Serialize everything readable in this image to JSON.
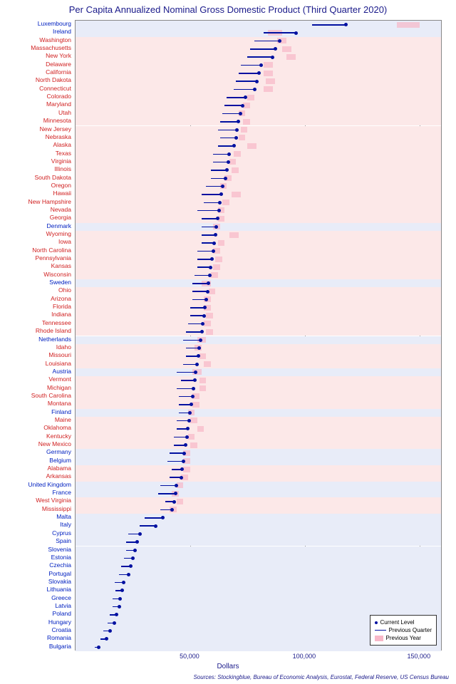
{
  "title": "Per Capita Annualized Nominal Gross Domestic Product (Third Quarter 2020)",
  "xaxis": {
    "title": "Dollars",
    "min": 0,
    "max": 160000,
    "ticks": [
      50000,
      100000,
      150000
    ],
    "tick_labels": [
      "50,000",
      "100,000",
      "150,000"
    ]
  },
  "sources": "Sources: Stockingblue, Bureau of Economic Analysis, Eurostat, Federal Reserve, US Census Bureau",
  "legend": {
    "current": "Current Level",
    "prev_q": "Previous Quarter",
    "prev_y": "Previous Year"
  },
  "colors": {
    "eu_bg": "#e8ecf8",
    "us_bg": "#fce8e8",
    "eu_text": "#0020c0",
    "us_text": "#d02020",
    "marker": "#0010a0",
    "prev_year": "#f8b8c8"
  },
  "rows": [
    {
      "name": "Luxembourg",
      "group": "eu",
      "current": 118000,
      "prev_q": 103000,
      "prev_y_lo": 140000,
      "prev_y_hi": 150000
    },
    {
      "name": "Ireland",
      "group": "eu",
      "current": 96000,
      "prev_q": 82000,
      "prev_y_lo": 84000,
      "prev_y_hi": 90000
    },
    {
      "name": "Washington",
      "group": "us",
      "current": 89000,
      "prev_q": 78000,
      "prev_y_lo": 88000,
      "prev_y_hi": 92000
    },
    {
      "name": "Massachusetts",
      "group": "us",
      "current": 87000,
      "prev_q": 76000,
      "prev_y_lo": 90000,
      "prev_y_hi": 94000
    },
    {
      "name": "New York",
      "group": "us",
      "current": 86000,
      "prev_q": 75000,
      "prev_y_lo": 92000,
      "prev_y_hi": 96000
    },
    {
      "name": "Delaware",
      "group": "us",
      "current": 81000,
      "prev_q": 72000,
      "prev_y_lo": 82000,
      "prev_y_hi": 86000
    },
    {
      "name": "California",
      "group": "us",
      "current": 80000,
      "prev_q": 71000,
      "prev_y_lo": 82000,
      "prev_y_hi": 86000
    },
    {
      "name": "North Dakota",
      "group": "us",
      "current": 79000,
      "prev_q": 70000,
      "prev_y_lo": 83000,
      "prev_y_hi": 87000
    },
    {
      "name": "Connecticut",
      "group": "us",
      "current": 78000,
      "prev_q": 69000,
      "prev_y_lo": 82000,
      "prev_y_hi": 86000
    },
    {
      "name": "Colorado",
      "group": "us",
      "current": 74000,
      "prev_q": 66000,
      "prev_y_lo": 75000,
      "prev_y_hi": 78000
    },
    {
      "name": "Maryland",
      "group": "us",
      "current": 73000,
      "prev_q": 65000,
      "prev_y_lo": 73000,
      "prev_y_hi": 76000
    },
    {
      "name": "Utah",
      "group": "us",
      "current": 72000,
      "prev_q": 64000,
      "prev_y_lo": 71000,
      "prev_y_hi": 74000
    },
    {
      "name": "Minnesota",
      "group": "us",
      "current": 71000,
      "prev_q": 63000,
      "prev_y_lo": 73000,
      "prev_y_hi": 76000
    },
    {
      "name": "New Jersey",
      "group": "us",
      "current": 70500,
      "prev_q": 62000,
      "prev_y_lo": 72000,
      "prev_y_hi": 75000
    },
    {
      "name": "Nebraska",
      "group": "us",
      "current": 70000,
      "prev_q": 63000,
      "prev_y_lo": 71000,
      "prev_y_hi": 74000
    },
    {
      "name": "Alaska",
      "group": "us",
      "current": 69000,
      "prev_q": 62000,
      "prev_y_lo": 75000,
      "prev_y_hi": 79000
    },
    {
      "name": "Texas",
      "group": "us",
      "current": 67000,
      "prev_q": 60000,
      "prev_y_lo": 69000,
      "prev_y_hi": 72000
    },
    {
      "name": "Virginia",
      "group": "us",
      "current": 66500,
      "prev_q": 60000,
      "prev_y_lo": 67000,
      "prev_y_hi": 70000
    },
    {
      "name": "Illinois",
      "group": "us",
      "current": 66000,
      "prev_q": 59000,
      "prev_y_lo": 68000,
      "prev_y_hi": 71000
    },
    {
      "name": "South Dakota",
      "group": "us",
      "current": 65500,
      "prev_q": 59000,
      "prev_y_lo": 65000,
      "prev_y_hi": 68000
    },
    {
      "name": "Oregon",
      "group": "us",
      "current": 64000,
      "prev_q": 57000,
      "prev_y_lo": 63000,
      "prev_y_hi": 66000
    },
    {
      "name": "Hawaii",
      "group": "us",
      "current": 63500,
      "prev_q": 55000,
      "prev_y_lo": 68000,
      "prev_y_hi": 72000
    },
    {
      "name": "New Hampshire",
      "group": "us",
      "current": 63000,
      "prev_q": 56000,
      "prev_y_lo": 64000,
      "prev_y_hi": 67000
    },
    {
      "name": "Nevada",
      "group": "us",
      "current": 62500,
      "prev_q": 53000,
      "prev_y_lo": 62000,
      "prev_y_hi": 65000
    },
    {
      "name": "Georgia",
      "group": "us",
      "current": 62000,
      "prev_q": 55000,
      "prev_y_lo": 62000,
      "prev_y_hi": 65000
    },
    {
      "name": "Denmark",
      "group": "eu",
      "current": 61500,
      "prev_q": 55000,
      "prev_y_lo": 60000,
      "prev_y_hi": 63000
    },
    {
      "name": "Wyoming",
      "group": "us",
      "current": 61000,
      "prev_q": 55000,
      "prev_y_lo": 67000,
      "prev_y_hi": 71000
    },
    {
      "name": "Iowa",
      "group": "us",
      "current": 60500,
      "prev_q": 55000,
      "prev_y_lo": 62000,
      "prev_y_hi": 65000
    },
    {
      "name": "North Carolina",
      "group": "us",
      "current": 60000,
      "prev_q": 53000,
      "prev_y_lo": 60000,
      "prev_y_hi": 63000
    },
    {
      "name": "Pennsylvania",
      "group": "us",
      "current": 59500,
      "prev_q": 53000,
      "prev_y_lo": 61000,
      "prev_y_hi": 64000
    },
    {
      "name": "Kansas",
      "group": "us",
      "current": 59000,
      "prev_q": 53000,
      "prev_y_lo": 60000,
      "prev_y_hi": 63000
    },
    {
      "name": "Wisconsin",
      "group": "us",
      "current": 58500,
      "prev_q": 52000,
      "prev_y_lo": 59000,
      "prev_y_hi": 62000
    },
    {
      "name": "Sweden",
      "group": "eu",
      "current": 58000,
      "prev_q": 51000,
      "prev_y_lo": 55000,
      "prev_y_hi": 59000
    },
    {
      "name": "Ohio",
      "group": "us",
      "current": 57500,
      "prev_q": 51000,
      "prev_y_lo": 58000,
      "prev_y_hi": 61000
    },
    {
      "name": "Arizona",
      "group": "us",
      "current": 57000,
      "prev_q": 51000,
      "prev_y_lo": 56000,
      "prev_y_hi": 59000
    },
    {
      "name": "Florida",
      "group": "us",
      "current": 56500,
      "prev_q": 50000,
      "prev_y_lo": 56000,
      "prev_y_hi": 59000
    },
    {
      "name": "Indiana",
      "group": "us",
      "current": 56000,
      "prev_q": 50000,
      "prev_y_lo": 57000,
      "prev_y_hi": 60000
    },
    {
      "name": "Tennessee",
      "group": "us",
      "current": 55500,
      "prev_q": 49000,
      "prev_y_lo": 56000,
      "prev_y_hi": 59000
    },
    {
      "name": "Rhode Island",
      "group": "us",
      "current": 55000,
      "prev_q": 48000,
      "prev_y_lo": 57000,
      "prev_y_hi": 60000
    },
    {
      "name": "Netherlands",
      "group": "eu",
      "current": 54500,
      "prev_q": 47000,
      "prev_y_lo": 53000,
      "prev_y_hi": 57000
    },
    {
      "name": "Idaho",
      "group": "us",
      "current": 54000,
      "prev_q": 48000,
      "prev_y_lo": 52000,
      "prev_y_hi": 55000
    },
    {
      "name": "Missouri",
      "group": "us",
      "current": 53500,
      "prev_q": 48000,
      "prev_y_lo": 54000,
      "prev_y_hi": 57000
    },
    {
      "name": "Louisiana",
      "group": "us",
      "current": 53000,
      "prev_q": 47000,
      "prev_y_lo": 56000,
      "prev_y_hi": 59000
    },
    {
      "name": "Austria",
      "group": "eu",
      "current": 52500,
      "prev_q": 44000,
      "prev_y_lo": 51000,
      "prev_y_hi": 55000
    },
    {
      "name": "Vermont",
      "group": "us",
      "current": 52000,
      "prev_q": 46000,
      "prev_y_lo": 54000,
      "prev_y_hi": 57000
    },
    {
      "name": "Michigan",
      "group": "us",
      "current": 51500,
      "prev_q": 44000,
      "prev_y_lo": 54000,
      "prev_y_hi": 57000
    },
    {
      "name": "South Carolina",
      "group": "us",
      "current": 51000,
      "prev_q": 45000,
      "prev_y_lo": 51000,
      "prev_y_hi": 54000
    },
    {
      "name": "Montana",
      "group": "us",
      "current": 50500,
      "prev_q": 45000,
      "prev_y_lo": 51000,
      "prev_y_hi": 54000
    },
    {
      "name": "Finland",
      "group": "eu",
      "current": 50000,
      "prev_q": 45000,
      "prev_y_lo": 49000,
      "prev_y_hi": 52000
    },
    {
      "name": "Maine",
      "group": "us",
      "current": 49500,
      "prev_q": 44000,
      "prev_y_lo": 50000,
      "prev_y_hi": 53000
    },
    {
      "name": "Oklahoma",
      "group": "us",
      "current": 49000,
      "prev_q": 44000,
      "prev_y_lo": 53000,
      "prev_y_hi": 56000
    },
    {
      "name": "Kentucky",
      "group": "us",
      "current": 48500,
      "prev_q": 43000,
      "prev_y_lo": 49000,
      "prev_y_hi": 52000
    },
    {
      "name": "New Mexico",
      "group": "us",
      "current": 48000,
      "prev_q": 43000,
      "prev_y_lo": 50000,
      "prev_y_hi": 53000
    },
    {
      "name": "Germany",
      "group": "eu",
      "current": 47500,
      "prev_q": 41000,
      "prev_y_lo": 47000,
      "prev_y_hi": 50000
    },
    {
      "name": "Belgium",
      "group": "eu",
      "current": 47000,
      "prev_q": 40000,
      "prev_y_lo": 47000,
      "prev_y_hi": 50000
    },
    {
      "name": "Alabama",
      "group": "us",
      "current": 46500,
      "prev_q": 42000,
      "prev_y_lo": 47000,
      "prev_y_hi": 50000
    },
    {
      "name": "Arkansas",
      "group": "us",
      "current": 46000,
      "prev_q": 41000,
      "prev_y_lo": 46000,
      "prev_y_hi": 49000
    },
    {
      "name": "United Kingdom",
      "group": "eu",
      "current": 44000,
      "prev_q": 37000,
      "prev_y_lo": 44000,
      "prev_y_hi": 47000
    },
    {
      "name": "France",
      "group": "eu",
      "current": 43500,
      "prev_q": 36000,
      "prev_y_lo": 42000,
      "prev_y_hi": 45000
    },
    {
      "name": "West Virginia",
      "group": "us",
      "current": 43000,
      "prev_q": 39000,
      "prev_y_lo": 44000,
      "prev_y_hi": 47000
    },
    {
      "name": "Mississippi",
      "group": "us",
      "current": 42000,
      "prev_q": 37000,
      "prev_y_lo": 41000,
      "prev_y_hi": 44000
    },
    {
      "name": "Malta",
      "group": "eu",
      "current": 38000,
      "prev_q": 30000,
      "prev_y_lo": 0,
      "prev_y_hi": 0
    },
    {
      "name": "Italy",
      "group": "eu",
      "current": 35000,
      "prev_q": 28000,
      "prev_y_lo": 0,
      "prev_y_hi": 0
    },
    {
      "name": "Cyprus",
      "group": "eu",
      "current": 28000,
      "prev_q": 23000,
      "prev_y_lo": 0,
      "prev_y_hi": 0
    },
    {
      "name": "Spain",
      "group": "eu",
      "current": 27000,
      "prev_q": 22000,
      "prev_y_lo": 0,
      "prev_y_hi": 0
    },
    {
      "name": "Slovenia",
      "group": "eu",
      "current": 26000,
      "prev_q": 22000,
      "prev_y_lo": 0,
      "prev_y_hi": 0
    },
    {
      "name": "Estonia",
      "group": "eu",
      "current": 25000,
      "prev_q": 21000,
      "prev_y_lo": 0,
      "prev_y_hi": 0
    },
    {
      "name": "Czechia",
      "group": "eu",
      "current": 24000,
      "prev_q": 20000,
      "prev_y_lo": 0,
      "prev_y_hi": 0
    },
    {
      "name": "Portugal",
      "group": "eu",
      "current": 23000,
      "prev_q": 19000,
      "prev_y_lo": 0,
      "prev_y_hi": 0
    },
    {
      "name": "Slovakia",
      "group": "eu",
      "current": 21000,
      "prev_q": 17000,
      "prev_y_lo": 0,
      "prev_y_hi": 0
    },
    {
      "name": "Lithuania",
      "group": "eu",
      "current": 20500,
      "prev_q": 17500,
      "prev_y_lo": 0,
      "prev_y_hi": 0
    },
    {
      "name": "Greece",
      "group": "eu",
      "current": 19500,
      "prev_q": 16000,
      "prev_y_lo": 0,
      "prev_y_hi": 0
    },
    {
      "name": "Latvia",
      "group": "eu",
      "current": 19000,
      "prev_q": 16000,
      "prev_y_lo": 0,
      "prev_y_hi": 0
    },
    {
      "name": "Poland",
      "group": "eu",
      "current": 18000,
      "prev_q": 15000,
      "prev_y_lo": 0,
      "prev_y_hi": 0
    },
    {
      "name": "Hungary",
      "group": "eu",
      "current": 17000,
      "prev_q": 14000,
      "prev_y_lo": 0,
      "prev_y_hi": 0
    },
    {
      "name": "Croatia",
      "group": "eu",
      "current": 15000,
      "prev_q": 12000,
      "prev_y_lo": 0,
      "prev_y_hi": 0
    },
    {
      "name": "Romania",
      "group": "eu",
      "current": 13500,
      "prev_q": 11000,
      "prev_y_lo": 0,
      "prev_y_hi": 0
    },
    {
      "name": "Bulgaria",
      "group": "eu",
      "current": 10000,
      "prev_q": 8500,
      "prev_y_lo": 0,
      "prev_y_hi": 0
    }
  ]
}
